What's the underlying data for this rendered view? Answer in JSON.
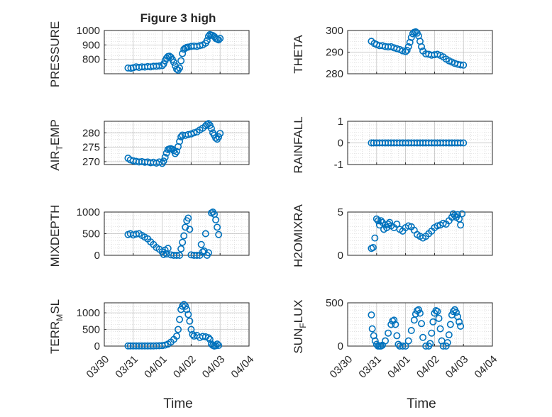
{
  "figure": {
    "title": "Figure 3 high",
    "xlabel": "Time",
    "marker_color": "#0072BD",
    "grid": "major+minor dotted",
    "x_ticks": [
      "03/30",
      "03/31",
      "04/01",
      "04/02",
      "04/03",
      "04/04"
    ]
  },
  "chart_data": [
    {
      "type": "scatter",
      "name": "pressure",
      "ylabel": "PRESSURE",
      "ylim": [
        700,
        1000
      ],
      "yticks": [
        800,
        900,
        1000
      ],
      "xlim": [
        0,
        5
      ],
      "points": [
        [
          0.82,
          740
        ],
        [
          0.92,
          738
        ],
        [
          1.0,
          742
        ],
        [
          1.1,
          748
        ],
        [
          1.2,
          744
        ],
        [
          1.3,
          748
        ],
        [
          1.4,
          746
        ],
        [
          1.5,
          750
        ],
        [
          1.6,
          748
        ],
        [
          1.7,
          752
        ],
        [
          1.8,
          752
        ],
        [
          1.9,
          754
        ],
        [
          2.0,
          756
        ],
        [
          2.05,
          768
        ],
        [
          2.1,
          790
        ],
        [
          2.15,
          808
        ],
        [
          2.2,
          820
        ],
        [
          2.25,
          822
        ],
        [
          2.3,
          815
        ],
        [
          2.35,
          800
        ],
        [
          2.4,
          780
        ],
        [
          2.45,
          755
        ],
        [
          2.5,
          732
        ],
        [
          2.55,
          725
        ],
        [
          2.6,
          740
        ],
        [
          2.65,
          790
        ],
        [
          2.7,
          840
        ],
        [
          2.75,
          870
        ],
        [
          2.8,
          878
        ],
        [
          2.85,
          883
        ],
        [
          2.9,
          885
        ],
        [
          3.0,
          890
        ],
        [
          3.1,
          892
        ],
        [
          3.2,
          890
        ],
        [
          3.3,
          895
        ],
        [
          3.4,
          900
        ],
        [
          3.5,
          912
        ],
        [
          3.55,
          930
        ],
        [
          3.6,
          960
        ],
        [
          3.65,
          972
        ],
        [
          3.7,
          968
        ],
        [
          3.75,
          965
        ],
        [
          3.8,
          958
        ],
        [
          3.85,
          945
        ],
        [
          3.9,
          940
        ],
        [
          3.95,
          935
        ],
        [
          4.0,
          945
        ]
      ]
    },
    {
      "type": "scatter",
      "name": "theta",
      "ylabel": "THETA",
      "ylim": [
        280,
        300
      ],
      "yticks": [
        280,
        290,
        300
      ],
      "xlim": [
        0,
        5
      ],
      "points": [
        [
          0.82,
          295
        ],
        [
          0.92,
          294
        ],
        [
          1.0,
          293.5
        ],
        [
          1.1,
          293
        ],
        [
          1.2,
          293
        ],
        [
          1.3,
          292.6
        ],
        [
          1.4,
          292.4
        ],
        [
          1.5,
          292.5
        ],
        [
          1.6,
          292
        ],
        [
          1.7,
          291.6
        ],
        [
          1.8,
          291.2
        ],
        [
          1.9,
          290.6
        ],
        [
          2.0,
          290.2
        ],
        [
          2.05,
          290.8
        ],
        [
          2.1,
          292.5
        ],
        [
          2.15,
          294.5
        ],
        [
          2.2,
          296.8
        ],
        [
          2.25,
          298.5
        ],
        [
          2.3,
          299.2
        ],
        [
          2.35,
          299.4
        ],
        [
          2.4,
          298.8
        ],
        [
          2.45,
          297.5
        ],
        [
          2.5,
          295
        ],
        [
          2.55,
          292.5
        ],
        [
          2.6,
          290.5
        ],
        [
          2.7,
          289.2
        ],
        [
          2.8,
          289
        ],
        [
          2.9,
          288.6
        ],
        [
          3.0,
          288.8
        ],
        [
          3.1,
          289
        ],
        [
          3.2,
          288.5
        ],
        [
          3.3,
          287.8
        ],
        [
          3.4,
          286.8
        ],
        [
          3.5,
          286
        ],
        [
          3.6,
          285.4
        ],
        [
          3.7,
          284.8
        ],
        [
          3.8,
          284.4
        ],
        [
          3.9,
          284.1
        ],
        [
          4.0,
          284
        ]
      ]
    },
    {
      "type": "scatter",
      "name": "air_temp",
      "ylabel": "AIR_TEMP",
      "ylim": [
        269,
        284
      ],
      "yticks": [
        270,
        275,
        280
      ],
      "xlim": [
        0,
        5
      ],
      "points": [
        [
          0.82,
          271.2
        ],
        [
          0.9,
          270.6
        ],
        [
          1.0,
          270.3
        ],
        [
          1.1,
          270.1
        ],
        [
          1.2,
          269.9
        ],
        [
          1.3,
          270.0
        ],
        [
          1.4,
          269.8
        ],
        [
          1.5,
          269.9
        ],
        [
          1.6,
          269.6
        ],
        [
          1.7,
          269.8
        ],
        [
          1.8,
          269.5
        ],
        [
          1.9,
          269.9
        ],
        [
          2.0,
          269.4
        ],
        [
          2.05,
          270.2
        ],
        [
          2.1,
          271.5
        ],
        [
          2.15,
          273
        ],
        [
          2.2,
          274.2
        ],
        [
          2.25,
          274.4
        ],
        [
          2.3,
          274.5
        ],
        [
          2.35,
          274.3
        ],
        [
          2.4,
          273.8
        ],
        [
          2.45,
          272.8
        ],
        [
          2.5,
          273.5
        ],
        [
          2.55,
          275.2
        ],
        [
          2.6,
          277
        ],
        [
          2.65,
          278.6
        ],
        [
          2.7,
          279.2
        ],
        [
          2.8,
          279.1
        ],
        [
          2.9,
          279.4
        ],
        [
          3.0,
          279.6
        ],
        [
          3.1,
          280.0
        ],
        [
          3.2,
          280.3
        ],
        [
          3.3,
          281.0
        ],
        [
          3.4,
          281.6
        ],
        [
          3.5,
          282.4
        ],
        [
          3.55,
          282.9
        ],
        [
          3.6,
          283.2
        ],
        [
          3.65,
          282.6
        ],
        [
          3.7,
          281.5
        ],
        [
          3.75,
          280.0
        ],
        [
          3.8,
          279.2
        ],
        [
          3.85,
          278.2
        ],
        [
          3.9,
          277.8
        ],
        [
          3.95,
          278.6
        ],
        [
          4.0,
          279.8
        ]
      ]
    },
    {
      "type": "scatter",
      "name": "rainfall",
      "ylabel": "RAINFALL",
      "ylim": [
        -1,
        1
      ],
      "yticks": [
        -1,
        0,
        1
      ],
      "xlim": [
        0,
        5
      ],
      "points": [
        [
          0.82,
          0
        ],
        [
          0.9,
          0
        ],
        [
          1.0,
          0
        ],
        [
          1.1,
          0
        ],
        [
          1.2,
          0
        ],
        [
          1.3,
          0
        ],
        [
          1.4,
          0
        ],
        [
          1.5,
          0
        ],
        [
          1.6,
          0
        ],
        [
          1.7,
          0
        ],
        [
          1.8,
          0
        ],
        [
          1.9,
          0
        ],
        [
          2.0,
          0
        ],
        [
          2.1,
          0
        ],
        [
          2.2,
          0
        ],
        [
          2.3,
          0
        ],
        [
          2.4,
          0
        ],
        [
          2.5,
          0
        ],
        [
          2.6,
          0
        ],
        [
          2.7,
          0
        ],
        [
          2.8,
          0
        ],
        [
          2.9,
          0
        ],
        [
          3.0,
          0
        ],
        [
          3.1,
          0
        ],
        [
          3.2,
          0
        ],
        [
          3.3,
          0
        ],
        [
          3.4,
          0
        ],
        [
          3.5,
          0
        ],
        [
          3.6,
          0
        ],
        [
          3.7,
          0
        ],
        [
          3.8,
          0
        ],
        [
          3.9,
          0
        ],
        [
          4.0,
          0
        ]
      ]
    },
    {
      "type": "scatter",
      "name": "mixdepth",
      "ylabel": "MIXDEPTH",
      "ylim": [
        0,
        1000
      ],
      "yticks": [
        0,
        500,
        1000
      ],
      "xlim": [
        0,
        5
      ],
      "points": [
        [
          0.82,
          480
        ],
        [
          0.9,
          500
        ],
        [
          1.0,
          470
        ],
        [
          1.1,
          490
        ],
        [
          1.2,
          500
        ],
        [
          1.3,
          460
        ],
        [
          1.4,
          420
        ],
        [
          1.5,
          380
        ],
        [
          1.6,
          310
        ],
        [
          1.7,
          250
        ],
        [
          1.8,
          180
        ],
        [
          1.9,
          140
        ],
        [
          2.0,
          80
        ],
        [
          2.05,
          20
        ],
        [
          2.1,
          120
        ],
        [
          2.15,
          30
        ],
        [
          2.2,
          160
        ],
        [
          2.3,
          10
        ],
        [
          2.4,
          0
        ],
        [
          2.5,
          0
        ],
        [
          2.6,
          0
        ],
        [
          2.65,
          150
        ],
        [
          2.7,
          300
        ],
        [
          2.75,
          450
        ],
        [
          2.8,
          650
        ],
        [
          2.85,
          800
        ],
        [
          2.9,
          860
        ],
        [
          2.95,
          600
        ],
        [
          3.0,
          10
        ],
        [
          3.1,
          0
        ],
        [
          3.2,
          0
        ],
        [
          3.3,
          0
        ],
        [
          3.35,
          250
        ],
        [
          3.4,
          80
        ],
        [
          3.45,
          100
        ],
        [
          3.5,
          500
        ],
        [
          3.55,
          0
        ],
        [
          3.6,
          60
        ],
        [
          3.7,
          980
        ],
        [
          3.75,
          1000
        ],
        [
          3.8,
          950
        ],
        [
          3.85,
          820
        ],
        [
          3.9,
          650
        ],
        [
          3.95,
          480
        ]
      ]
    },
    {
      "type": "scatter",
      "name": "h2omixra",
      "ylabel": "H2OMIXRA",
      "ylim": [
        0,
        5
      ],
      "yticks": [
        0,
        5
      ],
      "xlim": [
        0,
        5
      ],
      "points": [
        [
          0.82,
          0.8
        ],
        [
          0.88,
          0.9
        ],
        [
          0.94,
          2.0
        ],
        [
          1.0,
          4.2
        ],
        [
          1.05,
          4.0
        ],
        [
          1.1,
          3.5
        ],
        [
          1.15,
          4.0
        ],
        [
          1.2,
          3.8
        ],
        [
          1.25,
          3.0
        ],
        [
          1.3,
          3.5
        ],
        [
          1.35,
          3.2
        ],
        [
          1.4,
          3.6
        ],
        [
          1.45,
          3.8
        ],
        [
          1.5,
          3.4
        ],
        [
          1.6,
          3.2
        ],
        [
          1.7,
          3.6
        ],
        [
          1.8,
          3.0
        ],
        [
          1.9,
          2.8
        ],
        [
          2.0,
          3.2
        ],
        [
          2.1,
          3.4
        ],
        [
          2.2,
          3.3
        ],
        [
          2.3,
          2.9
        ],
        [
          2.4,
          2.4
        ],
        [
          2.5,
          2.2
        ],
        [
          2.6,
          2.0
        ],
        [
          2.7,
          2.2
        ],
        [
          2.8,
          2.5
        ],
        [
          2.9,
          2.8
        ],
        [
          3.0,
          3.2
        ],
        [
          3.1,
          3.4
        ],
        [
          3.2,
          3.5
        ],
        [
          3.3,
          3.7
        ],
        [
          3.4,
          3.6
        ],
        [
          3.5,
          4.0
        ],
        [
          3.6,
          4.4
        ],
        [
          3.65,
          4.8
        ],
        [
          3.7,
          4.6
        ],
        [
          3.75,
          4.4
        ],
        [
          3.8,
          4.7
        ],
        [
          3.85,
          4.2
        ],
        [
          3.9,
          3.5
        ],
        [
          3.95,
          4.8
        ]
      ]
    },
    {
      "type": "scatter",
      "name": "terr_msl",
      "ylabel": "TERR_MSL",
      "ylim": [
        0,
        1300
      ],
      "yticks": [
        0,
        500,
        1000
      ],
      "xlim": [
        0,
        5
      ],
      "points": [
        [
          0.82,
          5
        ],
        [
          0.9,
          5
        ],
        [
          1.0,
          5
        ],
        [
          1.1,
          5
        ],
        [
          1.2,
          5
        ],
        [
          1.3,
          5
        ],
        [
          1.4,
          5
        ],
        [
          1.5,
          5
        ],
        [
          1.6,
          5
        ],
        [
          1.7,
          5
        ],
        [
          1.8,
          8
        ],
        [
          1.9,
          10
        ],
        [
          2.0,
          15
        ],
        [
          2.1,
          30
        ],
        [
          2.2,
          60
        ],
        [
          2.3,
          120
        ],
        [
          2.4,
          200
        ],
        [
          2.5,
          300
        ],
        [
          2.55,
          500
        ],
        [
          2.6,
          800
        ],
        [
          2.65,
          1100
        ],
        [
          2.7,
          1200
        ],
        [
          2.75,
          1250
        ],
        [
          2.8,
          1200
        ],
        [
          2.85,
          1100
        ],
        [
          2.9,
          950
        ],
        [
          2.95,
          750
        ],
        [
          3.0,
          500
        ],
        [
          3.05,
          350
        ],
        [
          3.1,
          300
        ],
        [
          3.2,
          320
        ],
        [
          3.3,
          260
        ],
        [
          3.4,
          290
        ],
        [
          3.5,
          280
        ],
        [
          3.6,
          250
        ],
        [
          3.65,
          200
        ],
        [
          3.7,
          60
        ],
        [
          3.75,
          20
        ],
        [
          3.8,
          0
        ],
        [
          3.85,
          10
        ],
        [
          3.9,
          60
        ],
        [
          3.95,
          20
        ]
      ]
    },
    {
      "type": "scatter",
      "name": "sun_flux",
      "ylabel": "SUN_FLUX",
      "ylim": [
        0,
        500
      ],
      "yticks": [
        0,
        500
      ],
      "xlim": [
        0,
        5
      ],
      "points": [
        [
          0.82,
          360
        ],
        [
          0.85,
          200
        ],
        [
          0.9,
          120
        ],
        [
          0.95,
          60
        ],
        [
          1.0,
          20
        ],
        [
          1.05,
          0
        ],
        [
          1.1,
          0
        ],
        [
          1.15,
          0
        ],
        [
          1.2,
          10
        ],
        [
          1.3,
          60
        ],
        [
          1.4,
          150
        ],
        [
          1.5,
          250
        ],
        [
          1.55,
          290
        ],
        [
          1.6,
          300
        ],
        [
          1.65,
          250
        ],
        [
          1.7,
          120
        ],
        [
          1.75,
          20
        ],
        [
          1.8,
          0
        ],
        [
          1.9,
          0
        ],
        [
          2.0,
          0
        ],
        [
          2.1,
          60
        ],
        [
          2.2,
          180
        ],
        [
          2.3,
          300
        ],
        [
          2.35,
          370
        ],
        [
          2.4,
          410
        ],
        [
          2.45,
          420
        ],
        [
          2.5,
          380
        ],
        [
          2.55,
          260
        ],
        [
          2.6,
          100
        ],
        [
          2.7,
          0
        ],
        [
          2.8,
          0
        ],
        [
          2.85,
          30
        ],
        [
          2.9,
          150
        ],
        [
          2.95,
          280
        ],
        [
          3.0,
          380
        ],
        [
          3.05,
          410
        ],
        [
          3.1,
          400
        ],
        [
          3.15,
          320
        ],
        [
          3.2,
          200
        ],
        [
          3.25,
          60
        ],
        [
          3.3,
          0
        ],
        [
          3.4,
          0
        ],
        [
          3.45,
          40
        ],
        [
          3.5,
          130
        ],
        [
          3.55,
          250
        ],
        [
          3.6,
          360
        ],
        [
          3.65,
          400
        ],
        [
          3.7,
          420
        ],
        [
          3.75,
          390
        ],
        [
          3.8,
          340
        ],
        [
          3.85,
          280
        ],
        [
          3.9,
          230
        ]
      ]
    }
  ]
}
